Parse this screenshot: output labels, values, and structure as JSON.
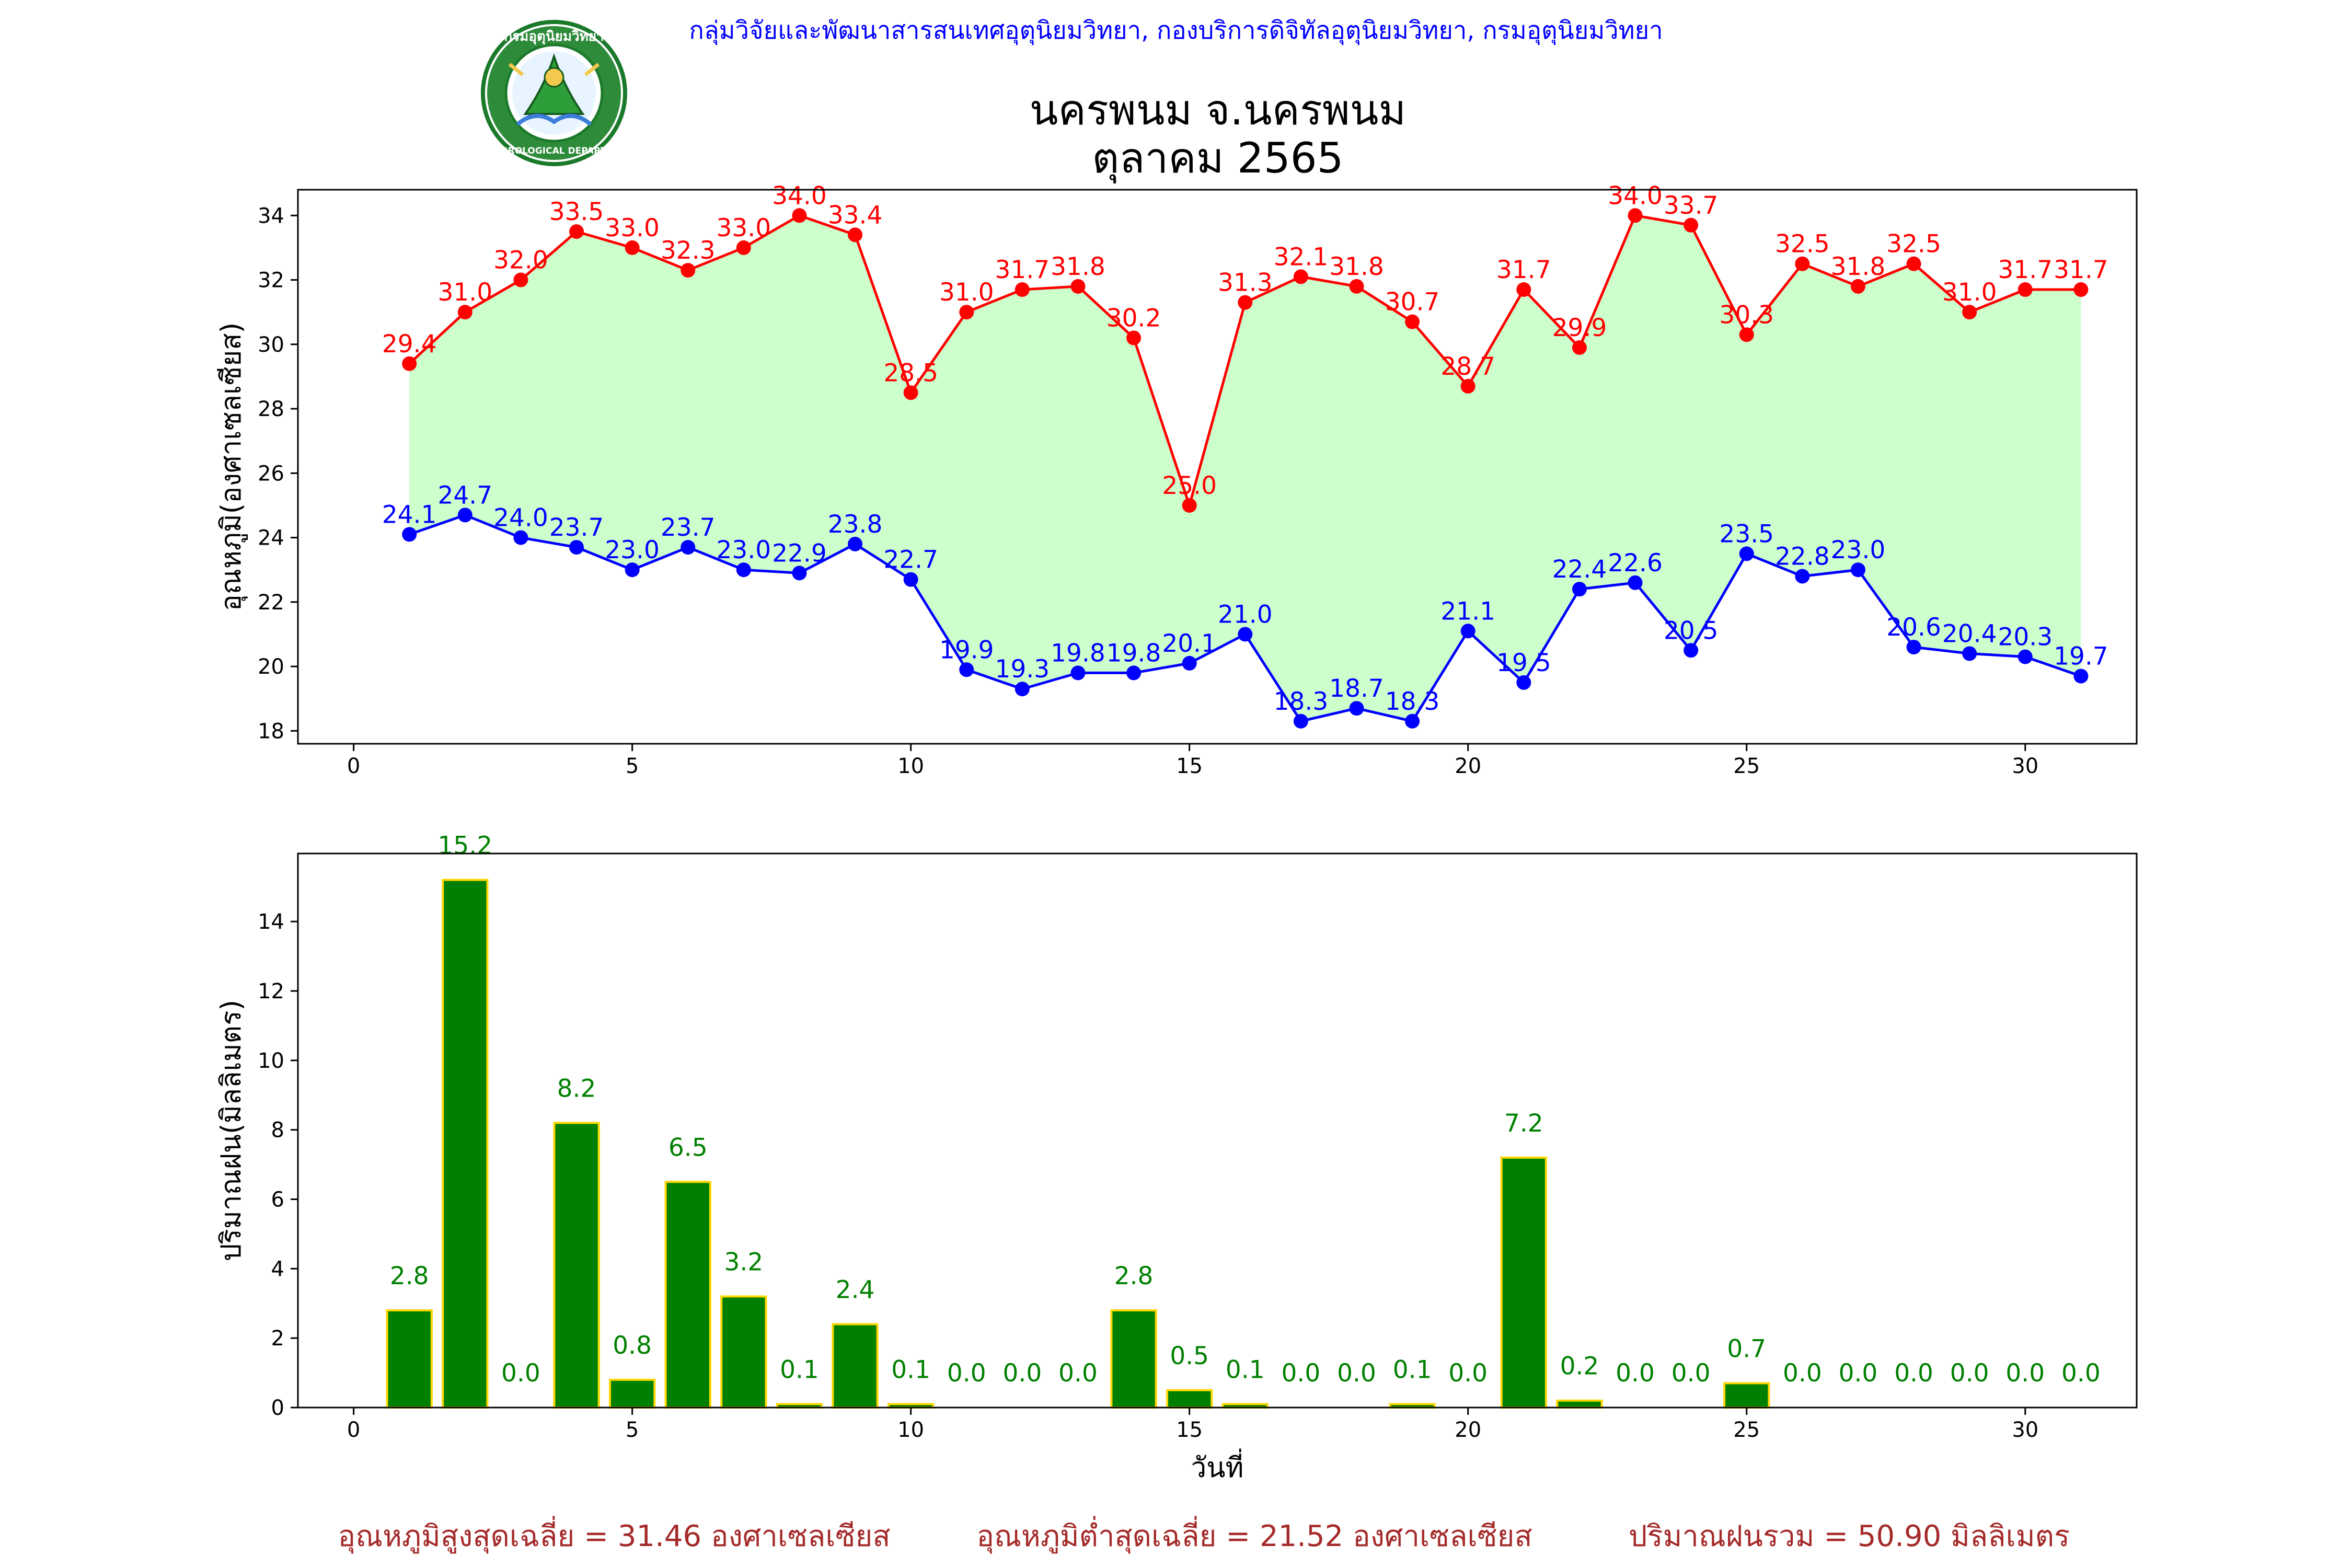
{
  "header": {
    "agency": "กลุ่มวิจัยและพัฒนาสารสนเทศอุตุนิยมวิทยา, กองบริการดิจิทัลอุตุนิยมวิทยา, กรมอุตุนิยมวิทยา",
    "logo_text_top": "กรมอุตุนิยมวิทยา",
    "logo_text_bottom": "METEOROLOGICAL DEPARTMENT"
  },
  "title": {
    "station": "นครพนม จ.นครพนม",
    "period": "ตุลาคม 2565"
  },
  "colors": {
    "max_line": "#ff0000",
    "min_line": "#0000ff",
    "fill_between": "#ccffcc",
    "rain_bar": "#008000",
    "rain_bar_edge": "#ffd700",
    "summary": "#a52a2a",
    "header": "#0000ff"
  },
  "chart_data": [
    {
      "type": "line",
      "ylabel": "อุณหภูมิ(องศาเซลเซียส)",
      "xlabel": "",
      "xlim": [
        -1,
        32
      ],
      "ylim": [
        17.6,
        34.8
      ],
      "xticks": [
        0,
        5,
        10,
        15,
        20,
        25,
        30
      ],
      "yticks": [
        18,
        20,
        22,
        24,
        26,
        28,
        30,
        32,
        34
      ],
      "grid": false,
      "fill_between": true,
      "x": [
        1,
        2,
        3,
        4,
        5,
        6,
        7,
        8,
        9,
        10,
        11,
        12,
        13,
        14,
        15,
        16,
        17,
        18,
        19,
        20,
        21,
        22,
        23,
        24,
        25,
        26,
        27,
        28,
        29,
        30,
        31
      ],
      "series": [
        {
          "key": "max",
          "values": [
            29.4,
            31.0,
            32.0,
            33.5,
            33.0,
            32.3,
            33.0,
            34.0,
            33.4,
            28.5,
            31.0,
            31.7,
            31.8,
            30.2,
            25.0,
            31.3,
            32.1,
            31.8,
            30.7,
            28.7,
            31.7,
            29.9,
            34.0,
            33.7,
            30.3,
            32.5,
            31.8,
            32.5,
            31.0,
            31.7,
            31.7
          ]
        },
        {
          "key": "min",
          "values": [
            24.1,
            24.7,
            24.0,
            23.7,
            23.0,
            23.7,
            23.0,
            22.9,
            23.8,
            22.7,
            19.9,
            19.3,
            19.8,
            19.8,
            20.1,
            21.0,
            18.3,
            18.7,
            18.3,
            21.1,
            19.5,
            22.4,
            22.6,
            20.5,
            23.5,
            22.8,
            23.0,
            20.6,
            20.4,
            20.3,
            19.7
          ]
        }
      ]
    },
    {
      "type": "bar",
      "ylabel": "ปริมาณฝน(มิลลิเมตร)",
      "xlabel": "วันที่",
      "xlim": [
        -1,
        32
      ],
      "ylim": [
        0,
        15.96
      ],
      "xticks": [
        0,
        5,
        10,
        15,
        20,
        25,
        30
      ],
      "yticks": [
        0,
        2,
        4,
        6,
        8,
        10,
        12,
        14
      ],
      "grid": false,
      "x": [
        1,
        2,
        3,
        4,
        5,
        6,
        7,
        8,
        9,
        10,
        11,
        12,
        13,
        14,
        15,
        16,
        17,
        18,
        19,
        20,
        21,
        22,
        23,
        24,
        25,
        26,
        27,
        28,
        29,
        30,
        31
      ],
      "values": [
        2.8,
        15.2,
        0.0,
        8.2,
        0.8,
        6.5,
        3.2,
        0.1,
        2.4,
        0.1,
        0.0,
        0.0,
        0.0,
        2.8,
        0.5,
        0.1,
        0.0,
        0.0,
        0.1,
        0.0,
        7.2,
        0.2,
        0.0,
        0.0,
        0.7,
        0.0,
        0.0,
        0.0,
        0.0,
        0.0,
        0.0
      ]
    }
  ],
  "summary": {
    "avg_max": "อุณหภูมิสูงสุดเฉลี่ย = 31.46 องศาเซลเซียส",
    "avg_min": "อุณหภูมิต่ำสุดเฉลี่ย = 21.52 องศาเซลเซียส",
    "total_rain": "ปริมาณฝนรวม = 50.90 มิลลิเมตร"
  }
}
